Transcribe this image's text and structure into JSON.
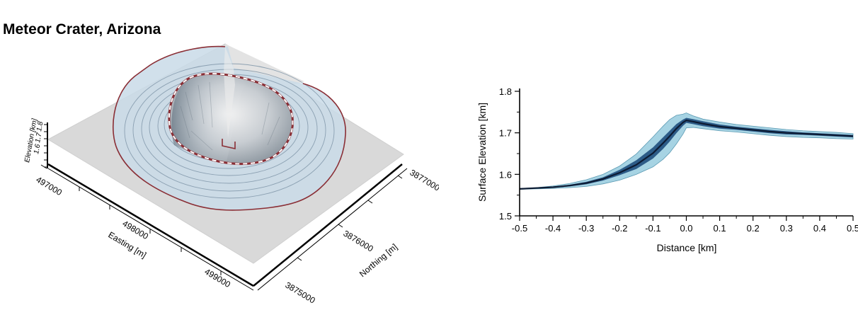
{
  "chart_data": [
    {
      "type": "surface3d",
      "title": "Meteor Crater, Arizona",
      "xlabel": "Easting [m]",
      "ylabel": "Northing [m]",
      "zlabel": "Elevation [km]",
      "xticks": [
        "497000",
        "498000",
        "499000"
      ],
      "yticks": [
        "3875000",
        "3876000",
        "3877000"
      ],
      "zticks": [
        "1.6",
        "1.7",
        "1.8"
      ],
      "colors": {
        "hillshade": "#d9d9d9",
        "zone_fill": "#c9dbe8",
        "contour": "#7f95a8",
        "rim_line": "#8a2e35",
        "crater_outline": "#8a2e35"
      }
    },
    {
      "type": "line",
      "xlabel": "Distance [km]",
      "ylabel": "Surface Elevation [km]",
      "xlim": [
        -0.5,
        0.5
      ],
      "ylim": [
        1.5,
        1.8
      ],
      "xticks": [
        -0.5,
        -0.4,
        -0.3,
        -0.2,
        -0.1,
        0.0,
        0.1,
        0.2,
        0.3,
        0.4,
        0.5
      ],
      "xtick_labels": [
        "-0.5",
        "-0.4",
        "-0.3",
        "-0.2",
        "-0.1",
        "0.0",
        "0.1",
        "0.2",
        "0.3",
        "0.4",
        "0.5"
      ],
      "yticks": [
        1.5,
        1.6,
        1.7,
        1.8
      ],
      "ytick_labels": [
        "1.5",
        "1.6",
        "1.7",
        "1.8"
      ],
      "x": [
        -0.5,
        -0.45,
        -0.4,
        -0.35,
        -0.3,
        -0.25,
        -0.2,
        -0.15,
        -0.1,
        -0.07,
        -0.05,
        -0.03,
        -0.01,
        0.0,
        0.02,
        0.05,
        0.1,
        0.15,
        0.2,
        0.25,
        0.3,
        0.35,
        0.4,
        0.45,
        0.5
      ],
      "series": [
        {
          "values": [
            1.565,
            1.567,
            1.569,
            1.573,
            1.579,
            1.589,
            1.604,
            1.623,
            1.651,
            1.675,
            1.692,
            1.71,
            1.725,
            1.73,
            1.727,
            1.722,
            1.715,
            1.711,
            1.707,
            1.703,
            1.7,
            1.698,
            1.696,
            1.694,
            1.692
          ]
        }
      ],
      "envelope_outer": {
        "upper": [
          1.566,
          1.568,
          1.572,
          1.578,
          1.587,
          1.6,
          1.62,
          1.649,
          1.69,
          1.716,
          1.732,
          1.742,
          1.745,
          1.748,
          1.741,
          1.733,
          1.726,
          1.72,
          1.716,
          1.712,
          1.708,
          1.705,
          1.703,
          1.701,
          1.698
        ],
        "lower": [
          1.564,
          1.565,
          1.566,
          1.568,
          1.571,
          1.577,
          1.586,
          1.6,
          1.618,
          1.636,
          1.652,
          1.673,
          1.697,
          1.712,
          1.713,
          1.71,
          1.705,
          1.702,
          1.698,
          1.694,
          1.691,
          1.689,
          1.688,
          1.686,
          1.685
        ]
      },
      "envelope_inner": {
        "upper": [
          1.5655,
          1.5675,
          1.5705,
          1.575,
          1.582,
          1.593,
          1.611,
          1.634,
          1.665,
          1.689,
          1.705,
          1.721,
          1.732,
          1.736,
          1.733,
          1.728,
          1.72,
          1.715,
          1.711,
          1.707,
          1.704,
          1.701,
          1.699,
          1.697,
          1.695
        ],
        "lower": [
          1.5645,
          1.5665,
          1.5675,
          1.571,
          1.576,
          1.585,
          1.598,
          1.613,
          1.638,
          1.661,
          1.679,
          1.699,
          1.717,
          1.724,
          1.721,
          1.716,
          1.71,
          1.707,
          1.703,
          1.699,
          1.696,
          1.695,
          1.693,
          1.691,
          1.689
        ]
      },
      "colors": {
        "outer": "#a6d3e3",
        "outer_edge": "#5b9ab3",
        "inner": "#2d5c88",
        "line": "#0d1b33"
      }
    }
  ]
}
